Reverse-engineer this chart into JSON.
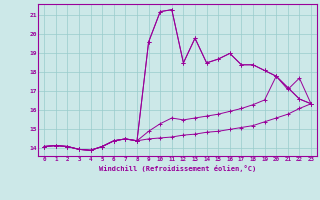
{
  "xlabel": "Windchill (Refroidissement éolien,°C)",
  "background_color": "#cce8e8",
  "line_color": "#990099",
  "grid_color": "#99cccc",
  "xlim": [
    -0.5,
    23.5
  ],
  "ylim": [
    13.6,
    21.6
  ],
  "yticks": [
    14,
    15,
    16,
    17,
    18,
    19,
    20,
    21
  ],
  "xticks": [
    0,
    1,
    2,
    3,
    4,
    5,
    6,
    7,
    8,
    9,
    10,
    11,
    12,
    13,
    14,
    15,
    16,
    17,
    18,
    19,
    20,
    21,
    22,
    23
  ],
  "line1_x": [
    0,
    1,
    2,
    3,
    4,
    5,
    6,
    7,
    8,
    9,
    10,
    11,
    12,
    13,
    14,
    15,
    16,
    17,
    18,
    19,
    20,
    21,
    22,
    23
  ],
  "line1_y": [
    14.1,
    14.15,
    14.1,
    13.95,
    13.9,
    14.1,
    14.4,
    14.5,
    14.4,
    14.5,
    14.55,
    14.6,
    14.7,
    14.75,
    14.85,
    14.9,
    15.0,
    15.1,
    15.2,
    15.4,
    15.6,
    15.8,
    16.1,
    16.35
  ],
  "line2_x": [
    0,
    1,
    2,
    3,
    4,
    5,
    6,
    7,
    8,
    9,
    10,
    11,
    12,
    13,
    14,
    15,
    16,
    17,
    18,
    19,
    20,
    21,
    22,
    23
  ],
  "line2_y": [
    14.1,
    14.15,
    14.1,
    13.95,
    13.9,
    14.1,
    14.4,
    14.5,
    14.4,
    14.9,
    15.3,
    15.6,
    15.5,
    15.6,
    15.7,
    15.8,
    15.95,
    16.1,
    16.3,
    16.55,
    17.8,
    17.1,
    17.7,
    16.35
  ],
  "line3_x": [
    0,
    1,
    2,
    3,
    4,
    5,
    6,
    7,
    8,
    9,
    10,
    11,
    12,
    13,
    14,
    15,
    16,
    17,
    18,
    19,
    20,
    21,
    22,
    23
  ],
  "line3_y": [
    14.1,
    14.15,
    14.1,
    13.95,
    13.9,
    14.1,
    14.4,
    14.5,
    14.4,
    19.6,
    21.2,
    21.3,
    18.5,
    19.8,
    18.5,
    18.7,
    19.0,
    18.4,
    18.4,
    18.1,
    17.8,
    17.2,
    16.6,
    16.35
  ],
  "line4_x": [
    0,
    1,
    2,
    3,
    4,
    5,
    6,
    7,
    8,
    9,
    10,
    11,
    12,
    13,
    14,
    15,
    16,
    17,
    18,
    19,
    20,
    21,
    22,
    23
  ],
  "line4_y": [
    14.1,
    14.15,
    14.1,
    13.95,
    13.9,
    14.1,
    14.4,
    14.5,
    14.4,
    19.6,
    21.2,
    21.3,
    18.5,
    19.8,
    18.5,
    18.7,
    19.0,
    18.4,
    18.4,
    18.1,
    17.8,
    17.2,
    16.6,
    16.35
  ]
}
